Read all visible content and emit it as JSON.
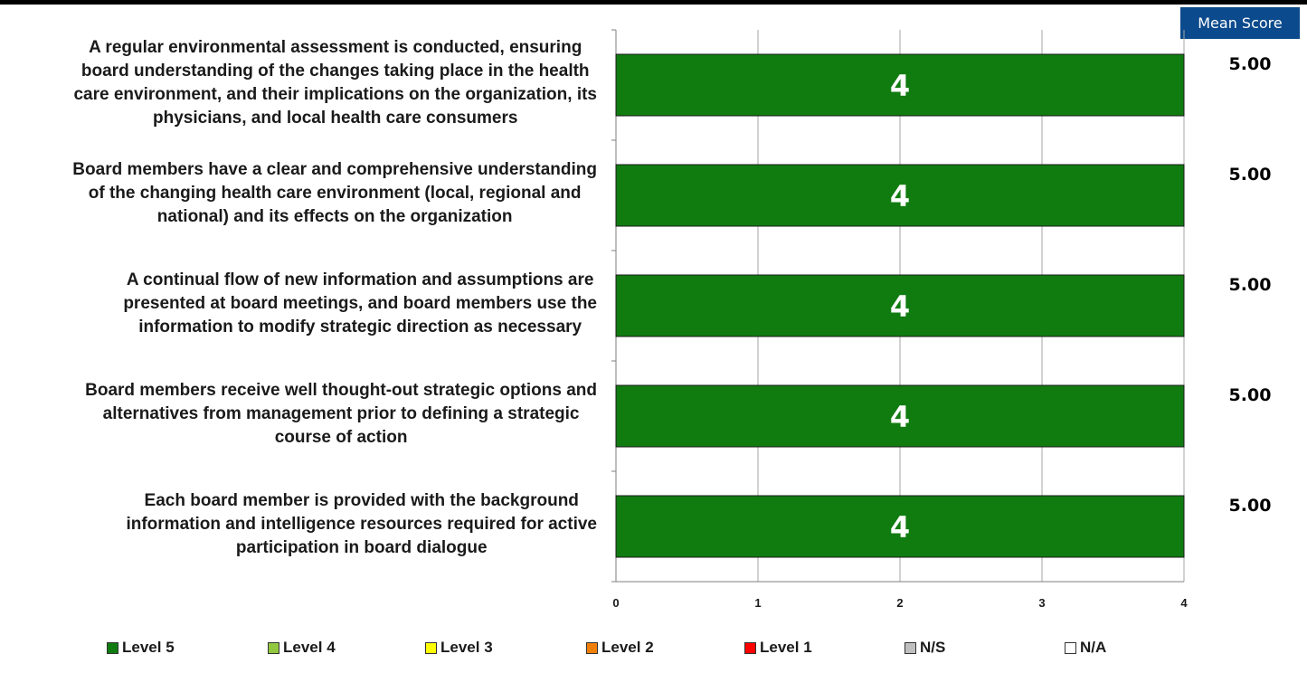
{
  "chart_data": {
    "type": "bar",
    "orientation": "horizontal",
    "stacked": true,
    "categories": [
      "A regular environmental assessment is conducted, ensuring board understanding of the changes taking place in the health care environment, and their implications on the organization, its physicians, and local health care consumers",
      "Board members have a clear and comprehensive understanding of the changing health care environment (local, regional and national) and its effects on the organization",
      "A continual flow of new information and assumptions are presented at board meetings, and board members use the information to modify strategic direction as necessary",
      "Board members receive well thought-out strategic options and alternatives from management prior to defining a strategic course of action",
      "Each board member is provided with the background information and intelligence resources required for active participation in board dialogue"
    ],
    "label_lines": [
      [
        "A regular environmental assessment is conducted, ensuring",
        "board understanding of the changes taking place in the health",
        "care environment, and their implications on the organization, its",
        "physicians, and local health care consumers"
      ],
      [
        "Board members have a clear and comprehensive understanding",
        "of the changing health care environment (local, regional and",
        "national) and its effects on the organization"
      ],
      [
        "A continual flow of new information and assumptions are",
        "presented at board meetings, and board members use the",
        "information to modify strategic direction as necessary"
      ],
      [
        "Board members receive well thought-out strategic options and",
        "alternatives from management prior to defining a strategic",
        "course of action"
      ],
      [
        "Each board member is provided with the background",
        "information and intelligence resources required for active",
        "participation in board dialogue"
      ]
    ],
    "series": [
      {
        "name": "Level 5",
        "color": "#107c10",
        "values": [
          4,
          4,
          4,
          4,
          4
        ]
      },
      {
        "name": "Level 4",
        "color": "#92c83e",
        "values": [
          0,
          0,
          0,
          0,
          0
        ]
      },
      {
        "name": "Level 3",
        "color": "#ffff00",
        "values": [
          0,
          0,
          0,
          0,
          0
        ]
      },
      {
        "name": "Level 2",
        "color": "#f07f09",
        "values": [
          0,
          0,
          0,
          0,
          0
        ]
      },
      {
        "name": "Level 1",
        "color": "#ff0000",
        "values": [
          0,
          0,
          0,
          0,
          0
        ]
      },
      {
        "name": "N/S",
        "color": "#bfbfbf",
        "values": [
          0,
          0,
          0,
          0,
          0
        ]
      },
      {
        "name": "N/A",
        "color": "#ffffff",
        "values": [
          0,
          0,
          0,
          0,
          0
        ]
      }
    ],
    "data_labels": [
      "4",
      "4",
      "4",
      "4",
      "4"
    ],
    "mean_scores": [
      "5.00",
      "5.00",
      "5.00",
      "5.00",
      "5.00"
    ],
    "mean_header": "Mean Score",
    "xlim": [
      0,
      4
    ],
    "xticks": [
      "0",
      "1",
      "2",
      "3",
      "4"
    ],
    "grid": true,
    "legend_position": "bottom"
  }
}
